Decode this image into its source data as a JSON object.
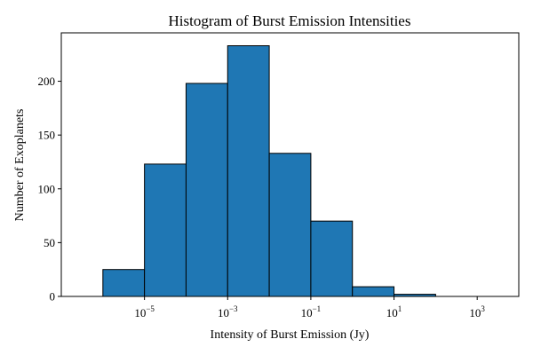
{
  "chart_data": {
    "type": "bar",
    "title": "Histogram of Burst Emission Intensities",
    "xlabel": "Intensity of Burst Emission (Jy)",
    "ylabel": "Number of Exoplanets",
    "x_scale": "log",
    "xlim": [
      1e-07,
      10000
    ],
    "ylim": [
      0,
      245
    ],
    "grid": false,
    "bar_color": "#1f77b4",
    "edge_color": "#000000",
    "bin_edges": [
      1e-06,
      1e-05,
      0.0001,
      0.001,
      0.01,
      0.1,
      1,
      10,
      100,
      1000
    ],
    "values": [
      25,
      123,
      198,
      233,
      133,
      70,
      9,
      2,
      0
    ],
    "y_ticks": [
      0,
      50,
      100,
      150,
      200
    ],
    "x_ticks": [
      {
        "value": 1e-05,
        "base": "10",
        "exp": "−5"
      },
      {
        "value": 0.001,
        "base": "10",
        "exp": "−3"
      },
      {
        "value": 0.1,
        "base": "10",
        "exp": "−1"
      },
      {
        "value": 10,
        "base": "10",
        "exp": "1"
      },
      {
        "value": 1000,
        "base": "10",
        "exp": "3"
      }
    ]
  }
}
